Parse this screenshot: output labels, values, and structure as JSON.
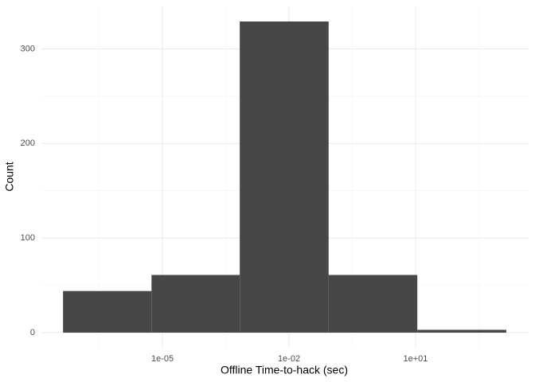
{
  "chart_data": {
    "type": "histogram",
    "x_label": "Offline Time-to-hack (sec)",
    "y_label": "Count",
    "x_log_scale": true,
    "bins": [
      4.4e-08,
      5.5e-06,
      0.00068,
      0.087,
      11,
      1413
    ],
    "values": [
      44,
      61,
      329,
      61,
      3
    ],
    "color": "#474747",
    "xlim": [
      1.35e-08,
      4790
    ],
    "ylim": [
      -16,
      345
    ],
    "xticks": [
      {
        "value": 1e-05,
        "label": "1e-05"
      },
      {
        "value": 0.01,
        "label": "1e-02"
      },
      {
        "value": 10,
        "label": "1e+01"
      }
    ],
    "x_minor_ticks": [
      3.16e-07,
      0.000316,
      0.316,
      316
    ],
    "yticks": [
      0,
      100,
      200,
      300
    ],
    "y_minor_ticks": [
      50,
      150,
      250
    ],
    "grid": true
  }
}
